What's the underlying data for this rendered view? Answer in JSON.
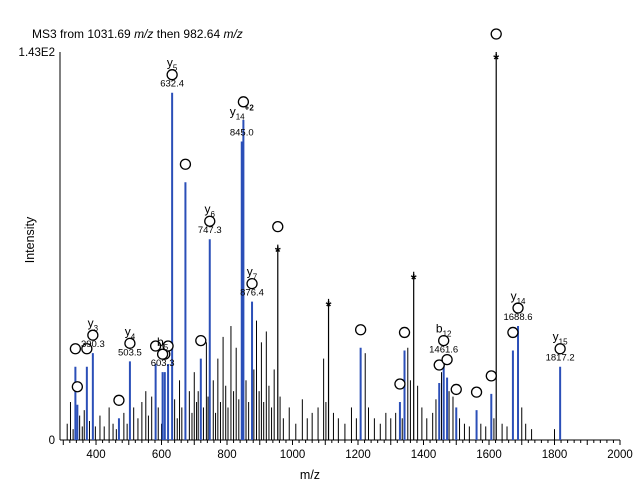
{
  "chart_data": {
    "type": "bar",
    "title_parts": [
      "MS3 from 1031.69 ",
      "m/z",
      " then 982.64 ",
      "m/z"
    ],
    "xlabel": "m/z",
    "ylabel": "Intensity",
    "xlim": [
      290,
      2000
    ],
    "ylim": [
      0,
      143
    ],
    "y_tick_labels": [
      "0",
      "1.43E2"
    ],
    "x_tick_labels": [
      "400",
      "600",
      "800",
      "1000",
      "1200",
      "1400",
      "1600",
      "1800",
      "2000"
    ],
    "colors": {
      "annotated": "#2b4fb8",
      "unannotated": "#000000",
      "marker": "#000000"
    },
    "annotated_peaks": [
      {
        "mz": 632.4,
        "intensity": 128,
        "ion": "y",
        "sub": "5",
        "sup": "",
        "label": "632.4",
        "circle": true
      },
      {
        "mz": 845.0,
        "intensity": 110,
        "ion": "y",
        "sub": "14",
        "sup": "+2",
        "label": "845.0",
        "circle": false
      },
      {
        "mz": 747.3,
        "intensity": 74,
        "ion": "y",
        "sub": "6",
        "sup": "",
        "label": "747.3",
        "circle": true
      },
      {
        "mz": 876.4,
        "intensity": 51,
        "ion": "y",
        "sub": "7",
        "sup": "",
        "label": "876.4",
        "circle": true
      },
      {
        "mz": 390.3,
        "intensity": 32,
        "ion": "y",
        "sub": "3",
        "sup": "",
        "label": "390.3",
        "circle": true
      },
      {
        "mz": 503.5,
        "intensity": 29,
        "ion": "y",
        "sub": "4",
        "sup": "",
        "label": "503.5",
        "circle": true
      },
      {
        "mz": 603.3,
        "intensity": 25,
        "ion": "b",
        "sub": "5",
        "sup": "",
        "label": "603.3",
        "circle": true
      },
      {
        "mz": 1461.6,
        "intensity": 30,
        "ion": "b",
        "sub": "12",
        "sup": "",
        "label": "1461.6",
        "circle": true
      },
      {
        "mz": 1688.6,
        "intensity": 42,
        "ion": "y",
        "sub": "14",
        "sup": "",
        "label": "1688.6",
        "circle": true
      },
      {
        "mz": 1817.2,
        "intensity": 27,
        "ion": "y",
        "sub": "15",
        "sup": "",
        "label": "1817.2",
        "circle": true
      }
    ],
    "other_blue_peaks": [
      {
        "mz": 337,
        "intensity": 27,
        "circle": true
      },
      {
        "mz": 343,
        "intensity": 13,
        "circle": true
      },
      {
        "mz": 372,
        "intensity": 27,
        "circle": true
      },
      {
        "mz": 470,
        "intensity": 8,
        "circle": true
      },
      {
        "mz": 582,
        "intensity": 28,
        "circle": true
      },
      {
        "mz": 610,
        "intensity": 25,
        "circle": true
      },
      {
        "mz": 620,
        "intensity": 28,
        "circle": true
      },
      {
        "mz": 673,
        "intensity": 95,
        "circle": true
      },
      {
        "mz": 720,
        "intensity": 30,
        "circle": true
      },
      {
        "mz": 850,
        "intensity": 118,
        "circle": true
      },
      {
        "mz": 1208,
        "intensity": 34,
        "circle": true
      },
      {
        "mz": 1328,
        "intensity": 14,
        "circle": true
      },
      {
        "mz": 1342,
        "intensity": 33,
        "circle": true
      },
      {
        "mz": 1448,
        "intensity": 21,
        "circle": true
      },
      {
        "mz": 1472,
        "intensity": 23,
        "circle": true
      },
      {
        "mz": 1500,
        "intensity": 12,
        "circle": true
      },
      {
        "mz": 1562,
        "intensity": 11,
        "circle": true
      },
      {
        "mz": 1607,
        "intensity": 17,
        "circle": true
      },
      {
        "mz": 1673,
        "intensity": 33,
        "circle": true
      }
    ],
    "starred_peaks": [
      {
        "mz": 955,
        "intensity": 72
      },
      {
        "mz": 1110,
        "intensity": 52
      },
      {
        "mz": 1370,
        "intensity": 62
      },
      {
        "mz": 1622,
        "intensity": 143
      }
    ],
    "noise_peaks": [
      {
        "mz": 312,
        "intensity": 6
      },
      {
        "mz": 322,
        "intensity": 14
      },
      {
        "mz": 330,
        "intensity": 4
      },
      {
        "mz": 350,
        "intensity": 9
      },
      {
        "mz": 358,
        "intensity": 5
      },
      {
        "mz": 364,
        "intensity": 11
      },
      {
        "mz": 380,
        "intensity": 7
      },
      {
        "mz": 398,
        "intensity": 5
      },
      {
        "mz": 412,
        "intensity": 9
      },
      {
        "mz": 425,
        "intensity": 5
      },
      {
        "mz": 440,
        "intensity": 12
      },
      {
        "mz": 452,
        "intensity": 6
      },
      {
        "mz": 462,
        "intensity": 4
      },
      {
        "mz": 485,
        "intensity": 10
      },
      {
        "mz": 495,
        "intensity": 6
      },
      {
        "mz": 515,
        "intensity": 12
      },
      {
        "mz": 528,
        "intensity": 8
      },
      {
        "mz": 540,
        "intensity": 14
      },
      {
        "mz": 552,
        "intensity": 18
      },
      {
        "mz": 560,
        "intensity": 9
      },
      {
        "mz": 570,
        "intensity": 16
      },
      {
        "mz": 590,
        "intensity": 12
      },
      {
        "mz": 600,
        "intensity": 6
      },
      {
        "mz": 640,
        "intensity": 15
      },
      {
        "mz": 648,
        "intensity": 8
      },
      {
        "mz": 655,
        "intensity": 22
      },
      {
        "mz": 662,
        "intensity": 12
      },
      {
        "mz": 685,
        "intensity": 18
      },
      {
        "mz": 693,
        "intensity": 10
      },
      {
        "mz": 700,
        "intensity": 25
      },
      {
        "mz": 707,
        "intensity": 14
      },
      {
        "mz": 712,
        "intensity": 18
      },
      {
        "mz": 728,
        "intensity": 12
      },
      {
        "mz": 737,
        "intensity": 36
      },
      {
        "mz": 742,
        "intensity": 16
      },
      {
        "mz": 758,
        "intensity": 22
      },
      {
        "mz": 765,
        "intensity": 10
      },
      {
        "mz": 772,
        "intensity": 30
      },
      {
        "mz": 780,
        "intensity": 14
      },
      {
        "mz": 788,
        "intensity": 38
      },
      {
        "mz": 796,
        "intensity": 20
      },
      {
        "mz": 803,
        "intensity": 12
      },
      {
        "mz": 812,
        "intensity": 42
      },
      {
        "mz": 820,
        "intensity": 18
      },
      {
        "mz": 828,
        "intensity": 34
      },
      {
        "mz": 836,
        "intensity": 15
      },
      {
        "mz": 858,
        "intensity": 22
      },
      {
        "mz": 866,
        "intensity": 14
      },
      {
        "mz": 882,
        "intensity": 26
      },
      {
        "mz": 890,
        "intensity": 44
      },
      {
        "mz": 898,
        "intensity": 18
      },
      {
        "mz": 905,
        "intensity": 36
      },
      {
        "mz": 912,
        "intensity": 14
      },
      {
        "mz": 920,
        "intensity": 40
      },
      {
        "mz": 928,
        "intensity": 20
      },
      {
        "mz": 936,
        "intensity": 12
      },
      {
        "mz": 944,
        "intensity": 26
      },
      {
        "mz": 962,
        "intensity": 16
      },
      {
        "mz": 972,
        "intensity": 8
      },
      {
        "mz": 990,
        "intensity": 12
      },
      {
        "mz": 1010,
        "intensity": 6
      },
      {
        "mz": 1030,
        "intensity": 15
      },
      {
        "mz": 1045,
        "intensity": 8
      },
      {
        "mz": 1060,
        "intensity": 10
      },
      {
        "mz": 1078,
        "intensity": 12
      },
      {
        "mz": 1095,
        "intensity": 30
      },
      {
        "mz": 1102,
        "intensity": 14
      },
      {
        "mz": 1125,
        "intensity": 10
      },
      {
        "mz": 1140,
        "intensity": 8
      },
      {
        "mz": 1160,
        "intensity": 6
      },
      {
        "mz": 1180,
        "intensity": 12
      },
      {
        "mz": 1195,
        "intensity": 8
      },
      {
        "mz": 1222,
        "intensity": 32
      },
      {
        "mz": 1232,
        "intensity": 12
      },
      {
        "mz": 1250,
        "intensity": 8
      },
      {
        "mz": 1268,
        "intensity": 6
      },
      {
        "mz": 1285,
        "intensity": 10
      },
      {
        "mz": 1300,
        "intensity": 8
      },
      {
        "mz": 1315,
        "intensity": 10
      },
      {
        "mz": 1335,
        "intensity": 8
      },
      {
        "mz": 1352,
        "intensity": 34
      },
      {
        "mz": 1360,
        "intensity": 22
      },
      {
        "mz": 1382,
        "intensity": 20
      },
      {
        "mz": 1395,
        "intensity": 12
      },
      {
        "mz": 1410,
        "intensity": 8
      },
      {
        "mz": 1428,
        "intensity": 10
      },
      {
        "mz": 1438,
        "intensity": 15
      },
      {
        "mz": 1455,
        "intensity": 25
      },
      {
        "mz": 1478,
        "intensity": 18
      },
      {
        "mz": 1490,
        "intensity": 16
      },
      {
        "mz": 1510,
        "intensity": 8
      },
      {
        "mz": 1525,
        "intensity": 6
      },
      {
        "mz": 1540,
        "intensity": 5
      },
      {
        "mz": 1575,
        "intensity": 6
      },
      {
        "mz": 1590,
        "intensity": 5
      },
      {
        "mz": 1615,
        "intensity": 8
      },
      {
        "mz": 1640,
        "intensity": 6
      },
      {
        "mz": 1655,
        "intensity": 5
      },
      {
        "mz": 1700,
        "intensity": 12
      },
      {
        "mz": 1712,
        "intensity": 6
      },
      {
        "mz": 1730,
        "intensity": 4
      },
      {
        "mz": 1800,
        "intensity": 4
      }
    ]
  }
}
